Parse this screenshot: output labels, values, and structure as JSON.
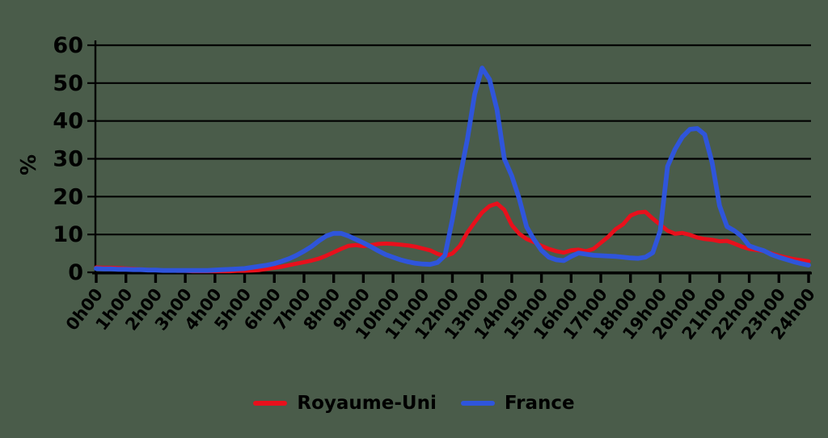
{
  "colors": {
    "background": "#4a5c4a",
    "axis": "#000000",
    "royaume_uni": "#e8101c",
    "france": "#2f55db"
  },
  "chart_data": {
    "type": "line",
    "title": "",
    "xlabel": "",
    "ylabel": "%",
    "ylim": [
      0,
      60
    ],
    "y_ticks": [
      0,
      10,
      20,
      30,
      40,
      50,
      60
    ],
    "grid": true,
    "legend_position": "bottom",
    "x_tick_labels": [
      "0h00",
      "1h00",
      "2h00",
      "3h00",
      "4h00",
      "5h00",
      "6h00",
      "7h00",
      "8h00",
      "9h00",
      "10h00",
      "11h00",
      "12h00",
      "13h00",
      "14h00",
      "15h00",
      "16h00",
      "17h00",
      "18h00",
      "19h00",
      "20h00",
      "21h00",
      "22h00",
      "23h00",
      "24h00"
    ],
    "x_resolution_minutes": 15,
    "series": [
      {
        "name": "Royaume-Uni",
        "color": "#e8101c",
        "values": [
          1.3,
          1.2,
          1.2,
          1.1,
          1.0,
          0.9,
          0.8,
          0.7,
          0.6,
          0.5,
          0.5,
          0.4,
          0.4,
          0.3,
          0.3,
          0.3,
          0.3,
          0.3,
          0.3,
          0.4,
          0.4,
          0.5,
          0.6,
          0.9,
          1.2,
          1.5,
          1.9,
          2.3,
          2.7,
          3.1,
          3.6,
          4.4,
          5.3,
          6.2,
          7.0,
          7.2,
          6.9,
          7.2,
          7.5,
          7.6,
          7.5,
          7.3,
          7.1,
          6.8,
          6.3,
          5.8,
          4.9,
          4.3,
          5.0,
          7.0,
          10.5,
          13.2,
          15.8,
          17.5,
          18.2,
          16.5,
          12.5,
          10.2,
          8.8,
          8.0,
          7.0,
          6.2,
          5.6,
          5.2,
          5.8,
          6.0,
          5.6,
          6.2,
          7.8,
          9.4,
          11.4,
          12.7,
          15.0,
          15.8,
          16.0,
          14.2,
          12.6,
          11.0,
          10.2,
          10.4,
          9.9,
          9.2,
          8.8,
          8.6,
          8.2,
          8.3,
          7.6,
          6.8,
          6.2,
          5.9,
          5.6,
          5.0,
          4.4,
          3.9,
          3.5,
          3.2,
          2.9
        ]
      },
      {
        "name": "France",
        "color": "#2f55db",
        "values": [
          1.0,
          0.9,
          0.9,
          0.8,
          0.8,
          0.7,
          0.7,
          0.6,
          0.6,
          0.5,
          0.5,
          0.5,
          0.5,
          0.5,
          0.5,
          0.5,
          0.6,
          0.7,
          0.8,
          0.9,
          1.0,
          1.3,
          1.6,
          1.9,
          2.3,
          2.9,
          3.6,
          4.5,
          5.6,
          6.8,
          8.3,
          9.6,
          10.3,
          10.3,
          9.6,
          8.7,
          7.8,
          6.8,
          5.7,
          4.7,
          4.0,
          3.3,
          2.8,
          2.4,
          2.2,
          2.1,
          2.6,
          4.5,
          14.0,
          25.0,
          35.0,
          47.0,
          54.0,
          51.0,
          43.0,
          30.0,
          25.5,
          19.5,
          12.0,
          8.7,
          5.8,
          4.0,
          3.3,
          3.1,
          4.2,
          5.1,
          4.8,
          4.5,
          4.4,
          4.3,
          4.2,
          4.0,
          3.8,
          3.7,
          4.0,
          5.2,
          11.0,
          28.0,
          32.5,
          35.8,
          37.8,
          38.0,
          36.4,
          29.0,
          17.6,
          12.1,
          11.0,
          9.5,
          7.0,
          6.3,
          5.7,
          4.7,
          4.0,
          3.4,
          2.8,
          2.3,
          1.9
        ]
      }
    ]
  }
}
